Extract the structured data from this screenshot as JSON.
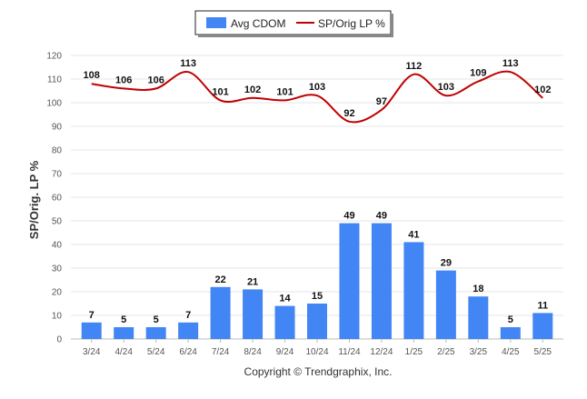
{
  "chart_data": {
    "type": "bar",
    "categories": [
      "3/24",
      "4/24",
      "5/24",
      "6/24",
      "7/24",
      "8/24",
      "9/24",
      "10/24",
      "11/24",
      "12/24",
      "1/25",
      "2/25",
      "3/25",
      "4/25",
      "5/25"
    ],
    "series": [
      {
        "name": "Avg CDOM",
        "type": "bar",
        "color": "#4285f4",
        "values": [
          7,
          5,
          5,
          7,
          22,
          21,
          14,
          15,
          49,
          49,
          41,
          29,
          18,
          5,
          11
        ]
      },
      {
        "name": "SP/Orig LP %",
        "type": "line",
        "color": "#c00000",
        "values": [
          108,
          106,
          106,
          113,
          101,
          102,
          101,
          103,
          92,
          97,
          112,
          103,
          109,
          113,
          102
        ]
      }
    ],
    "ylabel": "SP/Orig. LP %",
    "ylim": [
      0,
      120
    ],
    "yticks": [
      0,
      10,
      20,
      30,
      40,
      50,
      60,
      70,
      80,
      90,
      100,
      110,
      120
    ],
    "grid": true,
    "legend": "top-center"
  },
  "credit": "Copyright © Trendgraphix, Inc."
}
